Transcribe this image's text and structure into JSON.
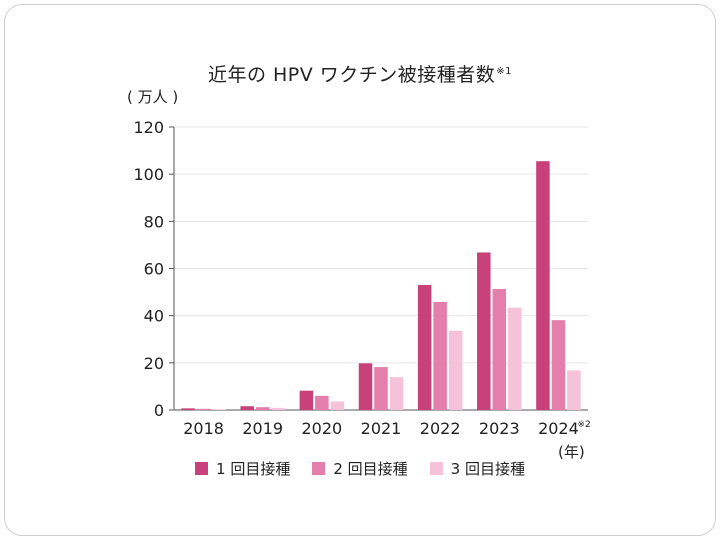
{
  "chart_data": {
    "type": "bar",
    "title": "近年の HPV ワクチン被接種者数",
    "title_note": "※1",
    "ylabel": "( 万人 )",
    "xlabel": "(年)",
    "ylim": [
      0,
      120
    ],
    "yticks": [
      "0",
      "20",
      "40",
      "60",
      "80",
      "100",
      "120"
    ],
    "categories": [
      "2018",
      "2019",
      "2020",
      "2021",
      "2022",
      "2023",
      "2024"
    ],
    "category_notes": [
      "",
      "",
      "",
      "",
      "",
      "",
      "※2"
    ],
    "series": [
      {
        "name": "1 回目接種",
        "color": "#c8417a",
        "values": [
          0.7,
          1.6,
          8.2,
          19.8,
          53.0,
          66.8,
          105.5
        ]
      },
      {
        "name": "2 回目接種",
        "color": "#e47fab",
        "values": [
          0.5,
          1.2,
          6.0,
          18.2,
          45.8,
          51.3,
          38.1
        ]
      },
      {
        "name": "3 回目接種",
        "color": "#f6c2d9",
        "values": [
          0.3,
          0.9,
          3.6,
          13.9,
          33.6,
          43.4,
          16.8
        ]
      }
    ],
    "grid": true,
    "legend_position": "bottom"
  }
}
